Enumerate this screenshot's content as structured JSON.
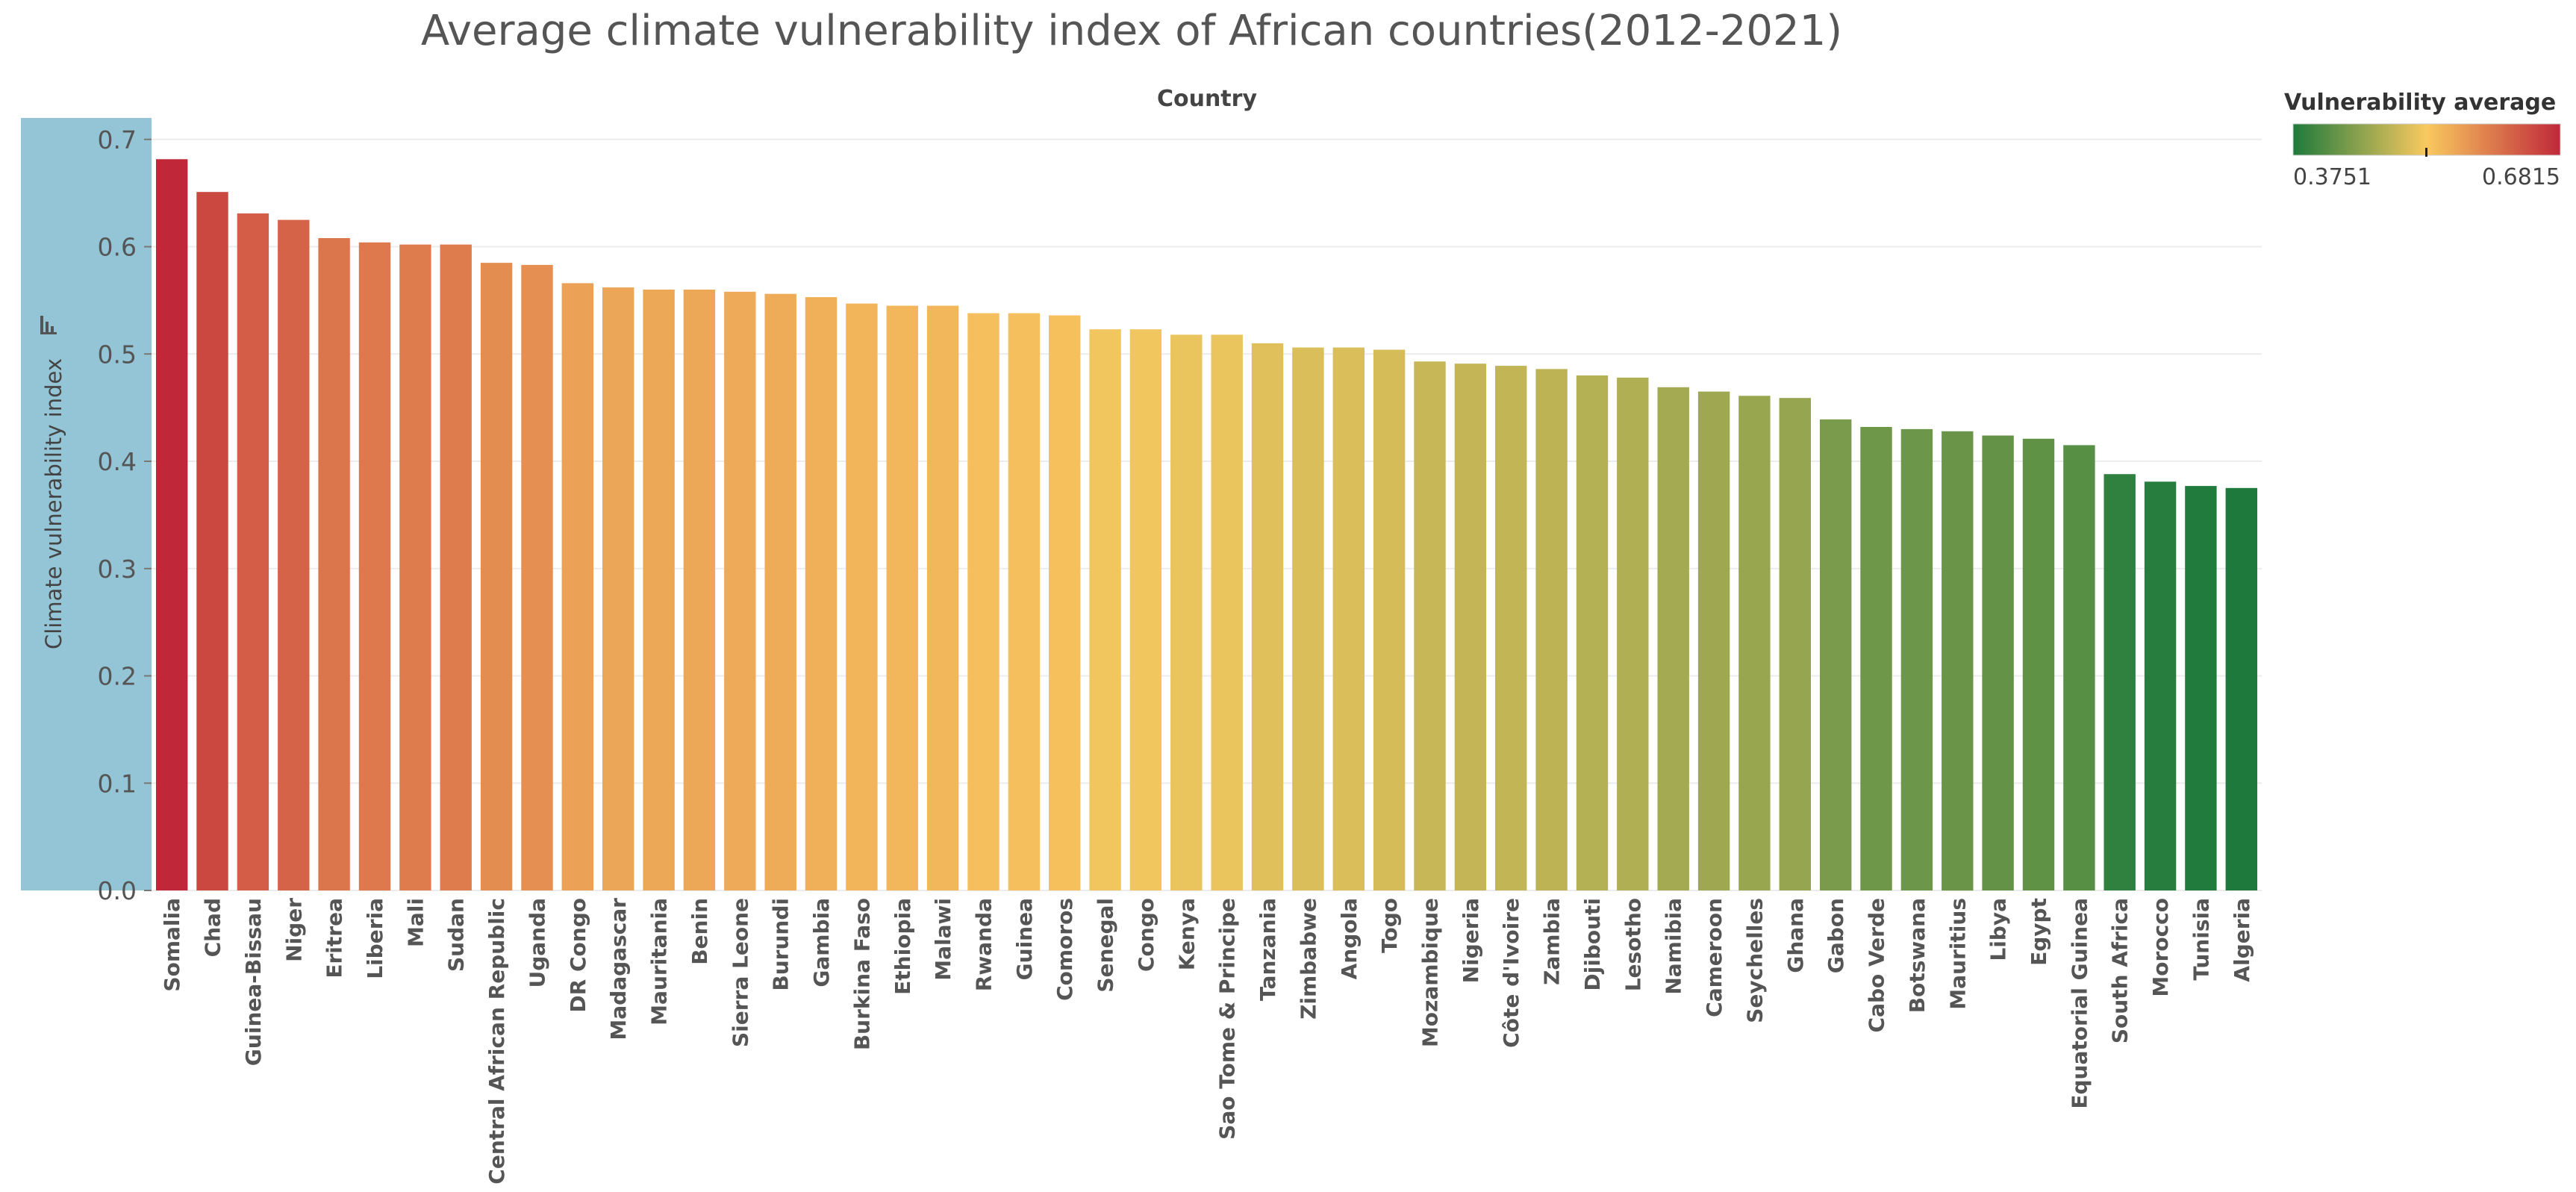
{
  "chart_data": {
    "type": "bar",
    "title": "Average climate vulnerability index of African countries(2012-2021)",
    "column_header": "Country",
    "xlabel": "",
    "ylabel": "Climate vulnerability index",
    "ylim": [
      0,
      0.72
    ],
    "yticks": [
      "0.0",
      "0.1",
      "0.2",
      "0.3",
      "0.4",
      "0.5",
      "0.6",
      "0.7"
    ],
    "grid": true,
    "categories": [
      "Somalia",
      "Chad",
      "Guinea-Bissau",
      "Niger",
      "Eritrea",
      "Liberia",
      "Mali",
      "Sudan",
      "Central African Republic",
      "Uganda",
      "DR Congo",
      "Madagascar",
      "Mauritania",
      "Benin",
      "Sierra Leone",
      "Burundi",
      "Gambia",
      "Burkina Faso",
      "Ethiopia",
      "Malawi",
      "Rwanda",
      "Guinea",
      "Comoros",
      "Senegal",
      "Congo",
      "Kenya",
      "Sao Tome & Principe",
      "Tanzania",
      "Zimbabwe",
      "Angola",
      "Togo",
      "Mozambique",
      "Nigeria",
      "Côte d'Ivoire",
      "Zambia",
      "Djibouti",
      "Lesotho",
      "Namibia",
      "Cameroon",
      "Seychelles",
      "Ghana",
      "Gabon",
      "Cabo Verde",
      "Botswana",
      "Mauritius",
      "Libya",
      "Egypt",
      "Equatorial Guinea",
      "South Africa",
      "Morocco",
      "Tunisia",
      "Algeria"
    ],
    "values": [
      0.6815,
      0.651,
      0.631,
      0.625,
      0.608,
      0.604,
      0.602,
      0.602,
      0.585,
      0.583,
      0.566,
      0.562,
      0.56,
      0.56,
      0.558,
      0.556,
      0.553,
      0.547,
      0.545,
      0.545,
      0.538,
      0.538,
      0.536,
      0.523,
      0.523,
      0.518,
      0.518,
      0.51,
      0.506,
      0.506,
      0.504,
      0.493,
      0.491,
      0.489,
      0.486,
      0.48,
      0.478,
      0.469,
      0.465,
      0.461,
      0.459,
      0.439,
      0.432,
      0.43,
      0.428,
      0.424,
      0.421,
      0.415,
      0.388,
      0.381,
      0.377,
      0.3751
    ],
    "legend": {
      "title": "Vulnerability average",
      "min_label": "0.3751",
      "max_label": "0.6815",
      "min": 0.3751,
      "max": 0.6815,
      "mid": 0.5283,
      "placement": "top-right"
    },
    "colors": {
      "low": "#1e7a3c",
      "mid": "#f9c95f",
      "high": "#c0283a",
      "axis_highlight": "#93c5d6",
      "grid": "#ececec"
    }
  }
}
